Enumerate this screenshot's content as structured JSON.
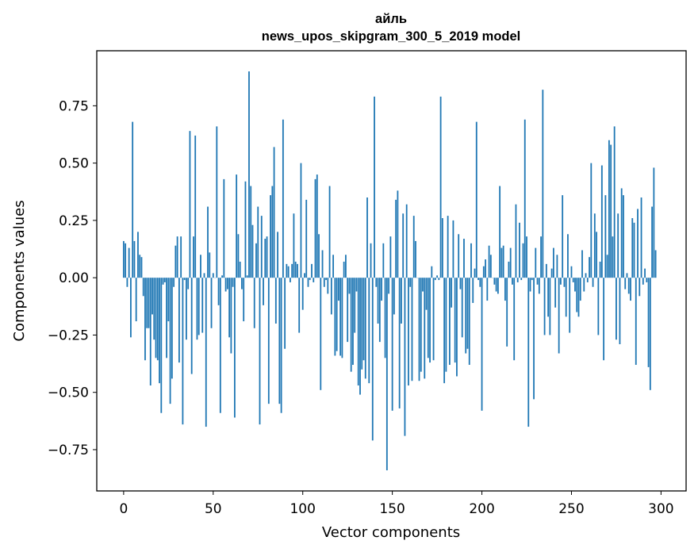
{
  "chart_data": {
    "type": "bar",
    "title": "айль",
    "subtitle": "news_upos_skipgram_300_5_2019 model",
    "xlabel": "Vector components",
    "ylabel": "Components values",
    "xlim": [
      -15,
      314
    ],
    "ylim": [
      -0.93,
      0.99
    ],
    "x_ticks": [
      0,
      50,
      100,
      150,
      200,
      250,
      300
    ],
    "y_ticks": [
      -0.75,
      -0.5,
      -0.25,
      0.0,
      0.25,
      0.5,
      0.75
    ],
    "y_tick_labels": [
      "−0.75",
      "−0.50",
      "−0.25",
      "0.00",
      "0.25",
      "0.50",
      "0.75"
    ],
    "bar_color": "#1f77b4",
    "values": [
      0.16,
      0.15,
      -0.04,
      0.13,
      -0.26,
      0.68,
      0.16,
      -0.19,
      0.2,
      0.1,
      0.09,
      -0.08,
      -0.36,
      -0.22,
      -0.22,
      -0.47,
      -0.16,
      -0.27,
      -0.35,
      -0.36,
      -0.46,
      -0.59,
      -0.03,
      -0.02,
      -0.35,
      -0.19,
      -0.55,
      -0.44,
      -0.04,
      0.14,
      0.18,
      -0.37,
      0.18,
      -0.64,
      -0.01,
      -0.27,
      -0.05,
      0.64,
      -0.42,
      0.18,
      0.62,
      -0.27,
      -0.25,
      0.1,
      -0.24,
      0.02,
      -0.65,
      0.31,
      0.11,
      -0.22,
      0.02,
      0.0,
      0.66,
      -0.12,
      -0.59,
      0.01,
      0.43,
      -0.06,
      -0.05,
      -0.26,
      -0.33,
      -0.04,
      -0.61,
      0.45,
      0.19,
      0.07,
      -0.05,
      -0.19,
      0.42,
      0.01,
      0.9,
      0.4,
      0.23,
      -0.22,
      0.15,
      0.31,
      -0.64,
      0.27,
      -0.12,
      0.17,
      0.18,
      -0.55,
      0.36,
      0.4,
      0.57,
      -0.2,
      0.2,
      -0.55,
      -0.59,
      0.69,
      -0.31,
      0.06,
      0.05,
      -0.02,
      0.06,
      0.28,
      0.07,
      0.06,
      -0.24,
      0.5,
      -0.14,
      0.02,
      0.34,
      -0.04,
      -0.01,
      0.06,
      -0.02,
      0.43,
      0.45,
      0.19,
      -0.49,
      0.12,
      -0.04,
      -0.01,
      -0.07,
      0.4,
      -0.16,
      0.1,
      -0.34,
      -0.32,
      -0.1,
      -0.34,
      -0.35,
      0.07,
      0.1,
      -0.28,
      -0.07,
      -0.41,
      -0.38,
      -0.24,
      -0.06,
      -0.47,
      -0.51,
      -0.4,
      -0.36,
      -0.44,
      0.35,
      -0.46,
      0.15,
      -0.71,
      0.79,
      -0.04,
      -0.2,
      -0.28,
      -0.1,
      0.15,
      -0.35,
      -0.84,
      -0.07,
      0.18,
      -0.58,
      -0.16,
      0.34,
      0.38,
      -0.57,
      -0.2,
      0.28,
      -0.69,
      0.32,
      -0.47,
      -0.04,
      -0.45,
      0.27,
      0.16,
      0.0,
      -0.45,
      -0.41,
      -0.06,
      -0.44,
      -0.14,
      -0.35,
      -0.37,
      0.05,
      -0.36,
      -0.01,
      0.01,
      -0.01,
      0.79,
      0.26,
      -0.46,
      -0.41,
      0.27,
      -0.38,
      -0.13,
      0.25,
      -0.37,
      -0.43,
      0.19,
      -0.05,
      -0.26,
      0.17,
      -0.33,
      -0.31,
      -0.38,
      0.15,
      -0.11,
      0.04,
      0.68,
      -0.01,
      -0.04,
      -0.58,
      0.05,
      0.08,
      -0.1,
      0.14,
      0.1,
      0.0,
      -0.03,
      -0.06,
      -0.07,
      0.4,
      0.13,
      0.14,
      -0.1,
      -0.3,
      0.07,
      0.13,
      -0.03,
      -0.36,
      0.32,
      -0.02,
      0.24,
      -0.01,
      0.15,
      0.69,
      0.18,
      -0.65,
      -0.06,
      -0.01,
      -0.53,
      0.13,
      -0.03,
      -0.07,
      0.18,
      0.82,
      -0.25,
      0.06,
      -0.17,
      -0.25,
      0.04,
      0.13,
      -0.13,
      0.1,
      -0.33,
      -0.03,
      0.36,
      -0.04,
      -0.17,
      0.19,
      -0.24,
      0.05,
      -0.02,
      -0.06,
      -0.15,
      -0.17,
      -0.1,
      0.12,
      -0.06,
      0.02,
      -0.02,
      0.09,
      0.5,
      -0.04,
      0.28,
      0.2,
      -0.25,
      0.07,
      0.49,
      -0.36,
      0.36,
      0.1,
      0.6,
      0.58,
      0.18,
      0.66,
      -0.27,
      0.28,
      -0.29,
      0.39,
      0.36,
      -0.05,
      0.02,
      -0.07,
      -0.1,
      0.26,
      0.24,
      -0.38,
      0.3,
      -0.08,
      0.35,
      -0.03,
      0.04,
      -0.02,
      -0.39,
      -0.49,
      0.31,
      0.48,
      0.12
    ]
  }
}
